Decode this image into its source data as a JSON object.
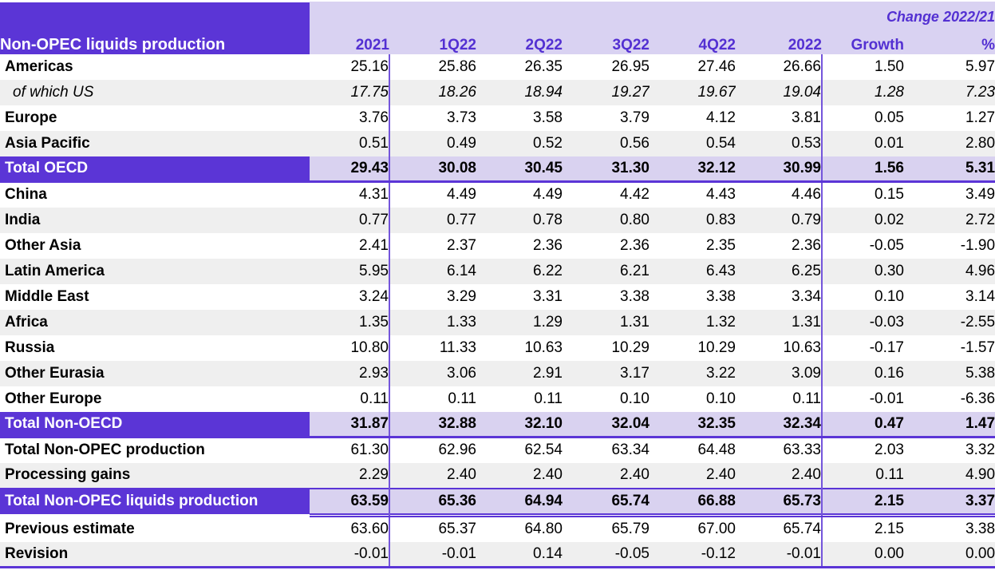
{
  "colors": {
    "dark_purple": "#5b35d6",
    "light_purple_header": "#d9d2f2",
    "light_purple_total": "#d9d2f0",
    "vertical_rule_purple": "#7455db",
    "header_text_purple": "#5330d2",
    "alt_row_gray": "#efefef",
    "title_text": "#ffffff",
    "body_text": "#000000"
  },
  "chart_data": {
    "type": "table",
    "title": "Non-OPEC liquids production",
    "group_header": "Change 2022/21",
    "columns": [
      "2021",
      "1Q22",
      "2Q22",
      "3Q22",
      "4Q22",
      "2022",
      "Growth",
      "%"
    ],
    "rows": [
      {
        "label": "Americas",
        "style": "",
        "values": [
          "25.16",
          "25.86",
          "26.35",
          "26.95",
          "27.46",
          "26.66",
          "1.50",
          "5.97"
        ]
      },
      {
        "label": "of which US",
        "style": "sub",
        "values": [
          "17.75",
          "18.26",
          "18.94",
          "19.27",
          "19.67",
          "19.04",
          "1.28",
          "7.23"
        ]
      },
      {
        "label": "Europe",
        "style": "",
        "values": [
          "3.76",
          "3.73",
          "3.58",
          "3.79",
          "4.12",
          "3.81",
          "0.05",
          "1.27"
        ]
      },
      {
        "label": "Asia Pacific",
        "style": "alt",
        "values": [
          "0.51",
          "0.49",
          "0.52",
          "0.56",
          "0.54",
          "0.53",
          "0.01",
          "2.80"
        ]
      },
      {
        "label": "Total OECD",
        "style": "total section-end",
        "values": [
          "29.43",
          "30.08",
          "30.45",
          "31.30",
          "32.12",
          "30.99",
          "1.56",
          "5.31"
        ]
      },
      {
        "label": "China",
        "style": "",
        "values": [
          "4.31",
          "4.49",
          "4.49",
          "4.42",
          "4.43",
          "4.46",
          "0.15",
          "3.49"
        ]
      },
      {
        "label": "India",
        "style": "alt",
        "values": [
          "0.77",
          "0.77",
          "0.78",
          "0.80",
          "0.83",
          "0.79",
          "0.02",
          "2.72"
        ]
      },
      {
        "label": "Other Asia",
        "style": "",
        "values": [
          "2.41",
          "2.37",
          "2.36",
          "2.36",
          "2.35",
          "2.36",
          "-0.05",
          "-1.90"
        ]
      },
      {
        "label": "Latin America",
        "style": "alt",
        "values": [
          "5.95",
          "6.14",
          "6.22",
          "6.21",
          "6.43",
          "6.25",
          "0.30",
          "4.96"
        ]
      },
      {
        "label": "Middle East",
        "style": "",
        "values": [
          "3.24",
          "3.29",
          "3.31",
          "3.38",
          "3.38",
          "3.34",
          "0.10",
          "3.14"
        ]
      },
      {
        "label": "Africa",
        "style": "alt",
        "values": [
          "1.35",
          "1.33",
          "1.29",
          "1.31",
          "1.32",
          "1.31",
          "-0.03",
          "-2.55"
        ]
      },
      {
        "label": "Russia",
        "style": "",
        "values": [
          "10.80",
          "11.33",
          "10.63",
          "10.29",
          "10.29",
          "10.63",
          "-0.17",
          "-1.57"
        ]
      },
      {
        "label": "Other Eurasia",
        "style": "alt",
        "values": [
          "2.93",
          "3.06",
          "2.91",
          "3.17",
          "3.22",
          "3.09",
          "0.16",
          "5.38"
        ]
      },
      {
        "label": "Other Europe",
        "style": "",
        "values": [
          "0.11",
          "0.11",
          "0.11",
          "0.10",
          "0.10",
          "0.11",
          "-0.01",
          "-6.36"
        ]
      },
      {
        "label": "Total Non-OECD",
        "style": "total section-end",
        "values": [
          "31.87",
          "32.88",
          "32.10",
          "32.04",
          "32.35",
          "32.34",
          "0.47",
          "1.47"
        ]
      },
      {
        "label": "Total Non-OPEC production",
        "style": "",
        "values": [
          "61.30",
          "62.96",
          "62.54",
          "63.34",
          "64.48",
          "63.33",
          "2.03",
          "3.32"
        ]
      },
      {
        "label": "Processing gains",
        "style": "alt",
        "values": [
          "2.29",
          "2.40",
          "2.40",
          "2.40",
          "2.40",
          "2.40",
          "0.11",
          "4.90"
        ]
      },
      {
        "label": "Total Non-OPEC liquids production",
        "style": "total grand",
        "values": [
          "63.59",
          "65.36",
          "64.94",
          "65.74",
          "66.88",
          "65.73",
          "2.15",
          "3.37"
        ],
        "gap_after": true
      },
      {
        "label": "Previous estimate",
        "style": "",
        "values": [
          "63.60",
          "65.37",
          "64.80",
          "65.79",
          "67.00",
          "65.74",
          "2.15",
          "3.38"
        ]
      },
      {
        "label": "Revision",
        "style": "alt table-end",
        "values": [
          "-0.01",
          "-0.01",
          "0.14",
          "-0.05",
          "-0.12",
          "-0.01",
          "0.00",
          "0.00"
        ]
      }
    ]
  }
}
